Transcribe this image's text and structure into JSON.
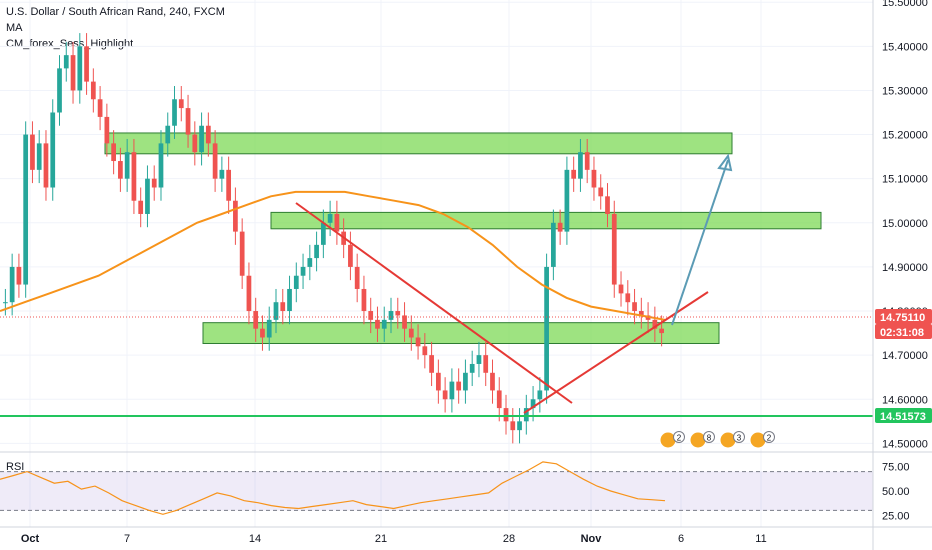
{
  "legend": {
    "title": "U.S. Dollar / South African Rand, 240, FXCM",
    "ma": "MA",
    "indicator": "CM_forex_Sess_Highlight"
  },
  "rsi": {
    "label": "RSI"
  },
  "chart_data": {
    "type": "candlestick",
    "colors": {
      "up": "#26a69a",
      "down": "#ef5350",
      "ma": "#f7931a",
      "zones": "#4caf50",
      "trend": "#e53935",
      "arrow": "#5b9bb5",
      "support": "#22c55e"
    },
    "price_axis": {
      "ticks": [
        "15.50000",
        "15.40000",
        "15.30000",
        "15.20000",
        "15.10000",
        "15.00000",
        "14.90000",
        "14.80000",
        "14.70000",
        "14.60000",
        "14.50000"
      ],
      "ylim": [
        14.48,
        15.5
      ]
    },
    "time_axis": {
      "ticks": [
        "Oct",
        "7",
        "14",
        "21",
        "28",
        "Nov",
        "6",
        "11"
      ]
    },
    "price_labels": [
      {
        "value": "14.75110",
        "color": "#ef5350"
      },
      {
        "value": "02:31:08",
        "color": "#ef5350"
      },
      {
        "value": "14.51573",
        "color": "#22c55e"
      }
    ],
    "rsi_axis": {
      "ticks": [
        "75.00",
        "50.00",
        "25.00"
      ]
    },
    "event_badges": [
      "2",
      "8",
      "3",
      "2"
    ],
    "ohlc_closes": [
      14.82,
      14.9,
      14.86,
      15.2,
      15.12,
      15.18,
      15.08,
      15.25,
      15.35,
      15.38,
      15.3,
      15.4,
      15.32,
      15.28,
      15.24,
      15.18,
      15.14,
      15.1,
      15.16,
      15.05,
      15.02,
      15.1,
      15.08,
      15.18,
      15.22,
      15.28,
      15.26,
      15.2,
      15.16,
      15.22,
      15.18,
      15.1,
      15.12,
      15.05,
      14.98,
      14.88,
      14.8,
      14.76,
      14.74,
      14.78,
      14.82,
      14.8,
      14.85,
      14.88,
      14.9,
      14.92,
      14.95,
      15.0,
      15.02,
      14.98,
      14.95,
      14.9,
      14.85,
      14.8,
      14.78,
      14.76,
      14.78,
      14.8,
      14.79,
      14.76,
      14.74,
      14.72,
      14.7,
      14.66,
      14.62,
      14.6,
      14.64,
      14.62,
      14.66,
      14.68,
      14.7,
      14.66,
      14.62,
      14.58,
      14.55,
      14.53,
      14.55,
      14.58,
      14.6,
      14.62,
      14.9,
      15.0,
      14.98,
      15.12,
      15.1,
      15.16,
      15.12,
      15.08,
      15.06,
      15.02,
      14.86,
      14.84,
      14.82,
      14.8,
      14.79,
      14.78,
      14.76,
      14.75
    ],
    "ma_values": [
      14.8,
      14.82,
      14.84,
      14.86,
      14.88,
      14.91,
      14.94,
      14.97,
      15.0,
      15.02,
      15.04,
      15.06,
      15.07,
      15.07,
      15.07,
      15.06,
      15.05,
      15.04,
      15.02,
      14.99,
      14.95,
      14.9,
      14.86,
      14.83,
      14.81,
      14.8,
      14.79,
      14.78
    ],
    "rsi_values": [
      62,
      66,
      70,
      64,
      58,
      60,
      52,
      55,
      48,
      40,
      35,
      30,
      26,
      30,
      36,
      42,
      48,
      45,
      40,
      38,
      35,
      33,
      32,
      34,
      36,
      38,
      40,
      36,
      34,
      32,
      35,
      38,
      40,
      42,
      44,
      46,
      48,
      58,
      65,
      72,
      80,
      78,
      70,
      62,
      55,
      50,
      46,
      42,
      41,
      40
    ],
    "zones": [
      [
        15.19,
        15.17
      ],
      [
        15.01,
        15.0
      ],
      [
        14.76,
        14.74
      ]
    ]
  }
}
